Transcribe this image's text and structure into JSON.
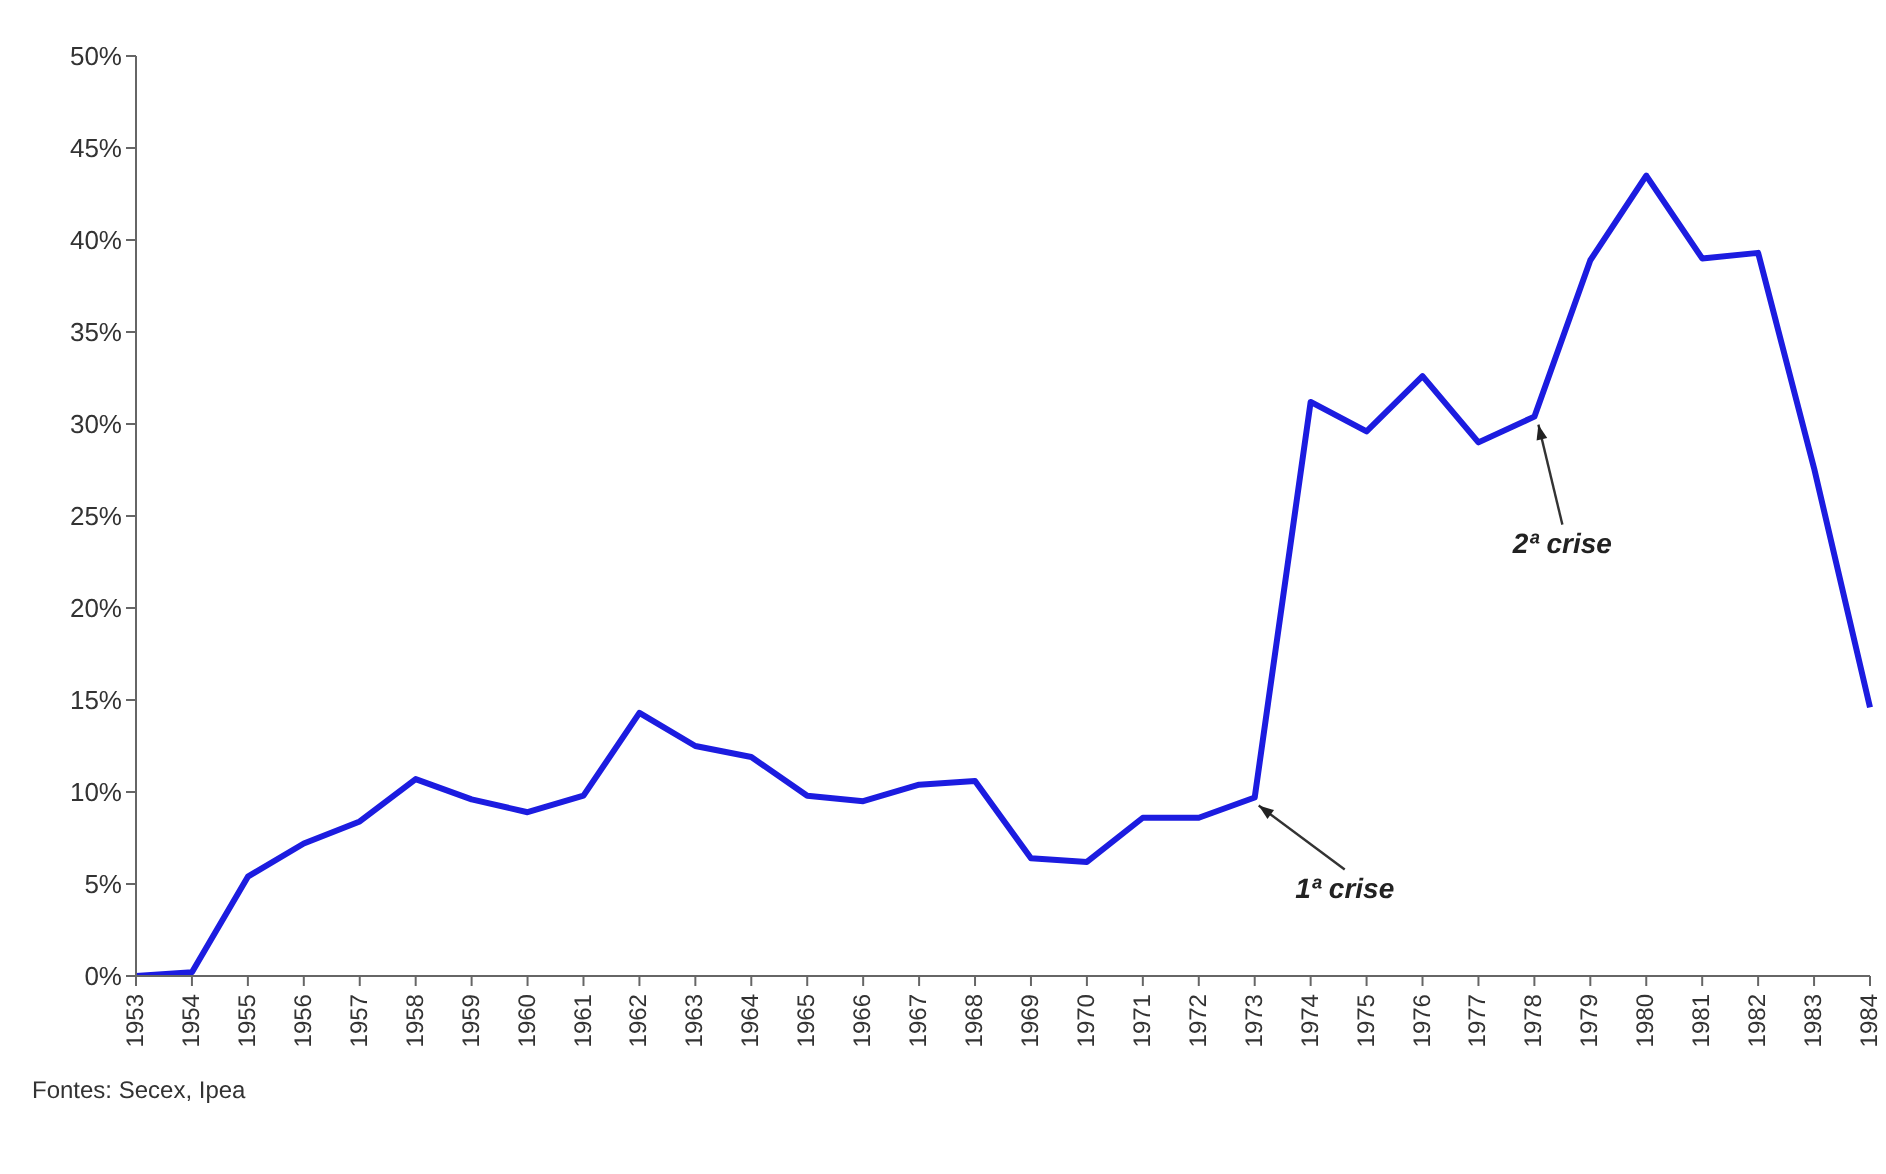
{
  "chart_data": {
    "type": "line",
    "categories": [
      "1953",
      "1954",
      "1955",
      "1956",
      "1957",
      "1958",
      "1959",
      "1960",
      "1961",
      "1962",
      "1963",
      "1964",
      "1965",
      "1966",
      "1967",
      "1968",
      "1969",
      "1970",
      "1971",
      "1972",
      "1973",
      "1974",
      "1975",
      "1976",
      "1977",
      "1978",
      "1979",
      "1980",
      "1981",
      "1982",
      "1983",
      "1984"
    ],
    "series": [
      {
        "color": "#1c1ce0",
        "values": [
          0,
          0.2,
          5.4,
          7.2,
          8.4,
          10.7,
          9.6,
          8.9,
          9.8,
          14.3,
          12.5,
          11.9,
          9.8,
          9.5,
          10.4,
          10.6,
          6.4,
          6.2,
          8.6,
          8.6,
          9.7,
          31.2,
          29.6,
          32.6,
          29.0,
          30.4,
          38.9,
          43.5,
          39.0,
          39.3,
          27.6,
          14.6
        ]
      }
    ],
    "ylim": [
      0,
      50
    ],
    "yticks": [
      {
        "value": 0,
        "label": "0%"
      },
      {
        "value": 5,
        "label": "5%"
      },
      {
        "value": 10,
        "label": "10%"
      },
      {
        "value": 15,
        "label": "15%"
      },
      {
        "value": 20,
        "label": "20%"
      },
      {
        "value": 25,
        "label": "25%"
      },
      {
        "value": 30,
        "label": "30%"
      },
      {
        "value": 35,
        "label": "35%"
      },
      {
        "value": 40,
        "label": "40%"
      },
      {
        "value": 45,
        "label": "45%"
      },
      {
        "value": 50,
        "label": "50%"
      }
    ],
    "grid": false,
    "legend": false,
    "marker": "none",
    "line_style": "solid",
    "annotations": [
      {
        "text": "1ª crise",
        "x": "1973",
        "y": 9.7
      },
      {
        "text": "2ª crise",
        "x": "1978",
        "y": 30.4
      },
      "Fontes: Secex, Ipea"
    ]
  }
}
